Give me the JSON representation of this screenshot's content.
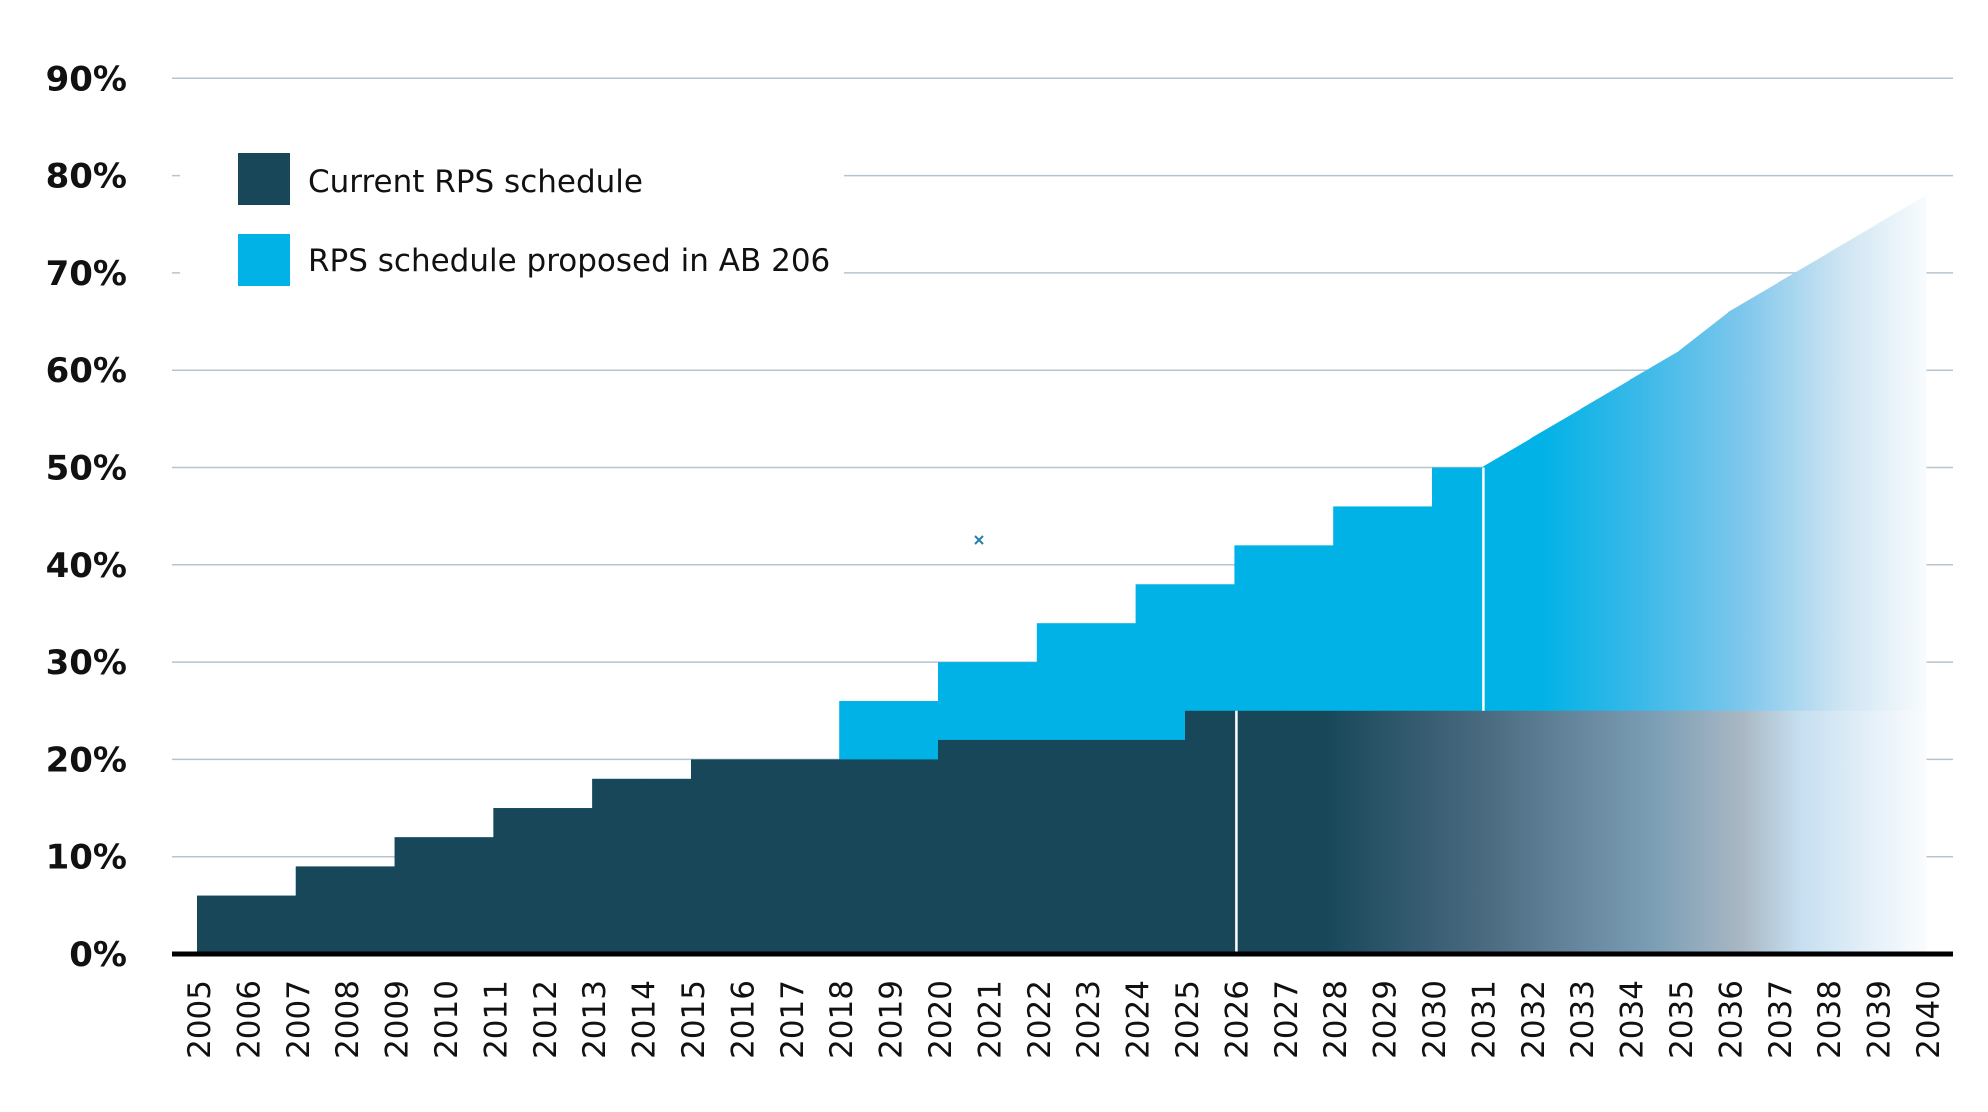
{
  "chart_data": {
    "type": "area",
    "step": true,
    "title": "",
    "xlabel": "",
    "ylabel": "",
    "ylim": [
      0,
      90
    ],
    "y_ticks": [
      "0%",
      "10%",
      "20%",
      "30%",
      "40%",
      "50%",
      "60%",
      "70%",
      "80%",
      "90%"
    ],
    "grid": true,
    "legend_position": "top-left",
    "x": [
      2005,
      2006,
      2007,
      2008,
      2009,
      2010,
      2011,
      2012,
      2013,
      2014,
      2015,
      2016,
      2017,
      2018,
      2019,
      2020,
      2021,
      2022,
      2023,
      2024,
      2025,
      2026,
      2027,
      2028,
      2029,
      2030,
      2031,
      2032,
      2033,
      2034,
      2035,
      2036,
      2037,
      2038,
      2039,
      2040
    ],
    "series": [
      {
        "name": "Current RPS schedule",
        "color": "#18475a",
        "values": [
          6,
          6,
          9,
          9,
          12,
          12,
          15,
          15,
          18,
          18,
          20,
          20,
          20,
          20,
          20,
          22,
          22,
          22,
          22,
          22,
          25,
          25,
          25,
          25,
          25,
          25,
          25,
          25,
          25,
          25,
          25,
          25,
          25,
          25,
          25,
          25
        ]
      },
      {
        "name": "RPS schedule proposed in AB 206",
        "color": "#00b2e6",
        "values": [
          6,
          6,
          9,
          9,
          12,
          12,
          15,
          15,
          18,
          18,
          20,
          20,
          20,
          26,
          26,
          30,
          30,
          34,
          34,
          38,
          38,
          42,
          42,
          46,
          46,
          50,
          50,
          53,
          56,
          59,
          62,
          66,
          69,
          72,
          75,
          78
        ]
      }
    ],
    "notes_visual": {
      "fade_after_year": 2031,
      "divider_years": [
        2026,
        2031
      ]
    }
  }
}
